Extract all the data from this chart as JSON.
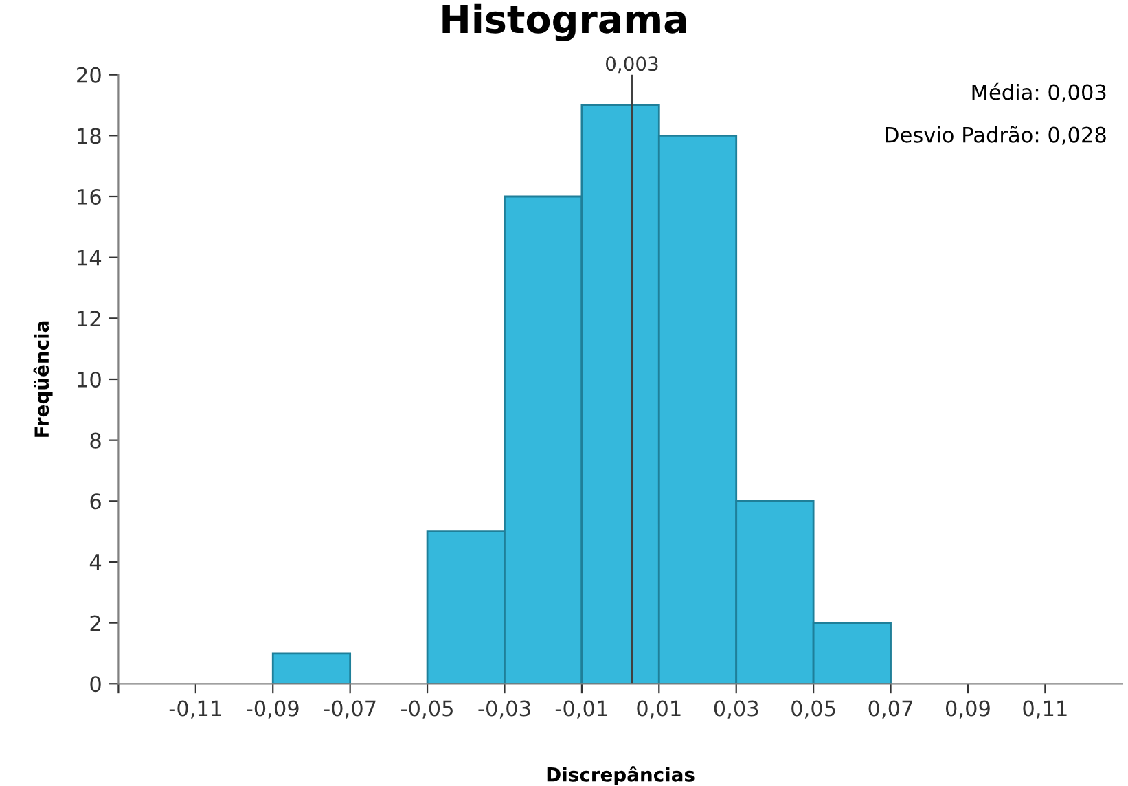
{
  "chart_data": {
    "type": "histogram",
    "title": "Histograma",
    "xlabel": "Discrepâncias",
    "ylabel": "Freqüência",
    "bins": [
      -0.13,
      -0.11,
      -0.09,
      -0.07,
      -0.05,
      -0.03,
      -0.01,
      0.01,
      0.03,
      0.05,
      0.07,
      0.09,
      0.11,
      0.13
    ],
    "values": [
      0,
      0,
      1,
      0,
      5,
      16,
      19,
      18,
      6,
      2,
      0,
      0,
      0
    ],
    "color": "#35b8dc",
    "xlim": [
      -0.13,
      0.13
    ],
    "xticks": [
      {
        "value": -0.13,
        "label": null
      },
      {
        "value": -0.11,
        "label": "-0,11"
      },
      {
        "value": -0.09,
        "label": "-0,09"
      },
      {
        "value": -0.07,
        "label": "-0,07"
      },
      {
        "value": -0.05,
        "label": "-0,05"
      },
      {
        "value": -0.03,
        "label": "-0,03"
      },
      {
        "value": -0.01,
        "label": "-0,01"
      },
      {
        "value": 0.01,
        "label": "0,01"
      },
      {
        "value": 0.03,
        "label": "0,03"
      },
      {
        "value": 0.05,
        "label": "0,05"
      },
      {
        "value": 0.07,
        "label": "0,07"
      },
      {
        "value": 0.09,
        "label": "0,09"
      },
      {
        "value": 0.11,
        "label": "0,11"
      }
    ],
    "ylim": [
      0,
      20
    ],
    "yticks": [
      0,
      2,
      4,
      6,
      8,
      10,
      12,
      14,
      16,
      18,
      20
    ],
    "grid": false,
    "ref_lines": [
      {
        "axis": "x",
        "value": 0.003,
        "label": "0,003",
        "color": "#404040"
      }
    ],
    "annotations": [
      "Média: 0,003",
      "Desvio Padrão: 0,028"
    ]
  }
}
